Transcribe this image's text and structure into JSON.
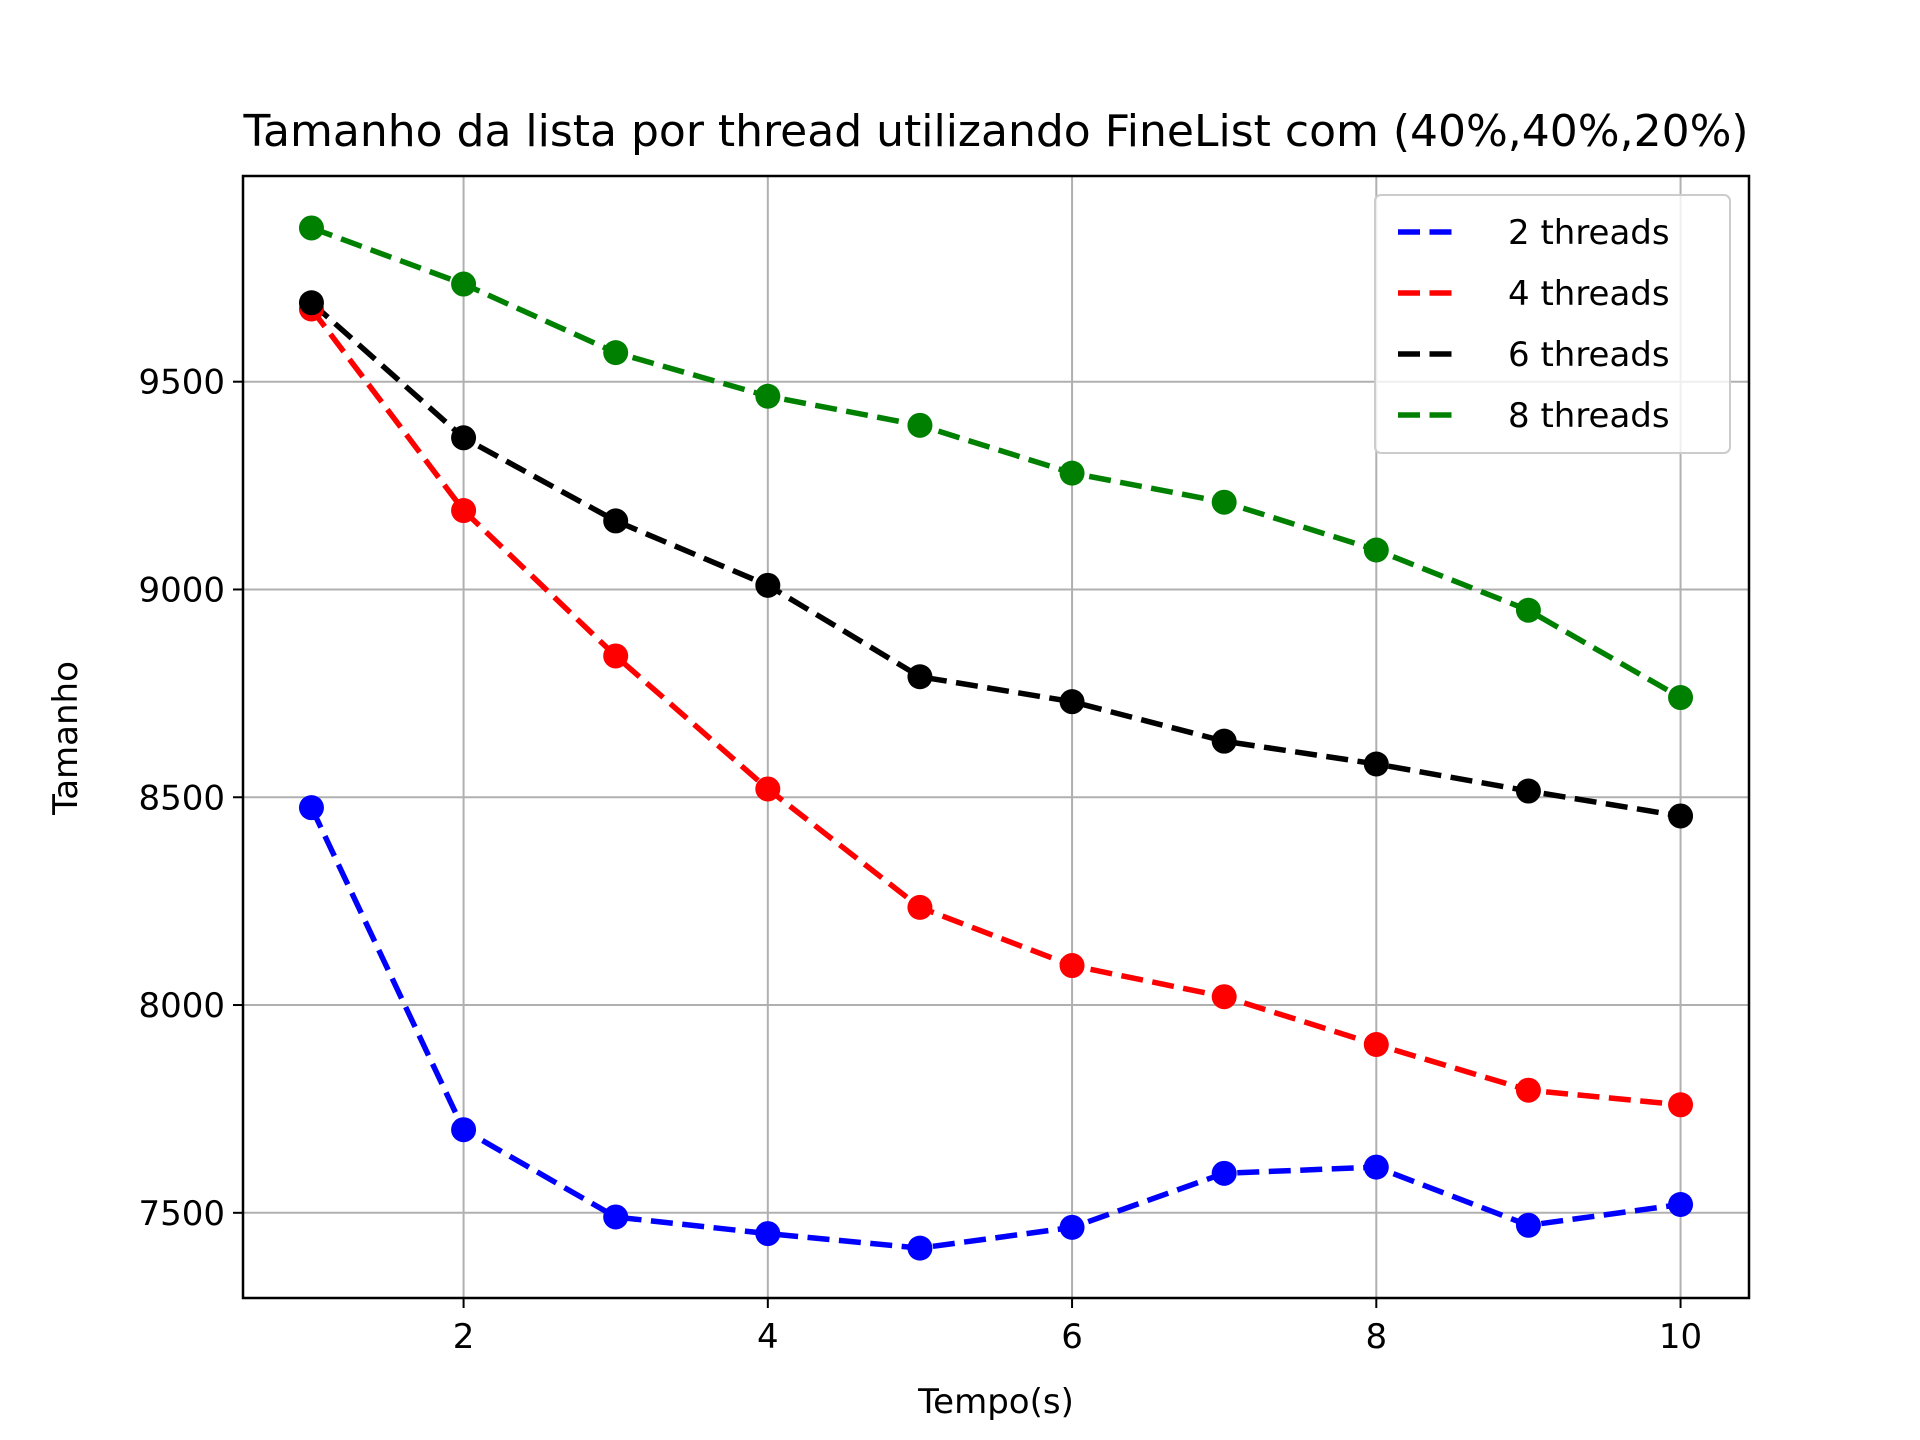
{
  "chart_data": {
    "type": "line",
    "title": "Tamanho da lista por thread utilizando FineList com (40%,40%,20%)",
    "xlabel": "Tempo(s)",
    "ylabel": "Tamanho",
    "x": [
      1,
      2,
      3,
      4,
      5,
      6,
      7,
      8,
      9,
      10
    ],
    "xlim": [
      0.55,
      10.45
    ],
    "ylim": [
      7295,
      9995
    ],
    "xticks": [
      2,
      4,
      6,
      8,
      10
    ],
    "yticks": [
      7500,
      8000,
      8500,
      9000,
      9500
    ],
    "grid": true,
    "legend_position": "top-right",
    "series": [
      {
        "name": "2 threads",
        "color": "#0000ff",
        "values": [
          8475,
          7700,
          7490,
          7450,
          7415,
          7465,
          7595,
          7610,
          7470,
          7520
        ]
      },
      {
        "name": "4 threads",
        "color": "#ff0000",
        "values": [
          9675,
          9190,
          8840,
          8520,
          8235,
          8095,
          8020,
          7905,
          7795,
          7760
        ]
      },
      {
        "name": "6 threads",
        "color": "#000000",
        "values": [
          9690,
          9365,
          9165,
          9010,
          8790,
          8730,
          8635,
          8580,
          8515,
          8455
        ]
      },
      {
        "name": "8 threads",
        "color": "#008000",
        "values": [
          9870,
          9735,
          9570,
          9465,
          9395,
          9280,
          9210,
          9095,
          8950,
          8740
        ]
      }
    ]
  }
}
